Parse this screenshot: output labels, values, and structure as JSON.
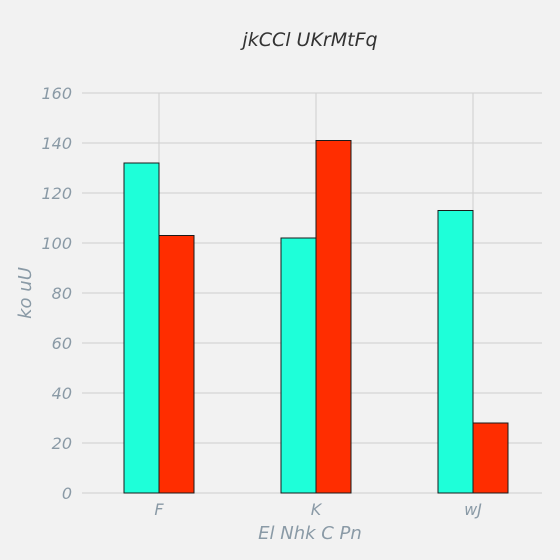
{
  "chart_data": {
    "type": "bar",
    "title": "jkCCl UKrMtFq",
    "xlabel": "El  Nhk C Pn",
    "ylabel": "ko uU",
    "categories": [
      "F",
      "K",
      "wJ"
    ],
    "series": [
      {
        "values": [
          132,
          102,
          113
        ],
        "color": "#1effd9"
      },
      {
        "values": [
          103,
          141,
          28
        ],
        "color": "#ff2d00"
      }
    ],
    "ylim": [
      0,
      160
    ],
    "yticks": [
      0,
      20,
      40,
      60,
      80,
      100,
      120,
      140,
      160
    ],
    "grid": true,
    "background": "#f2f2f2"
  }
}
